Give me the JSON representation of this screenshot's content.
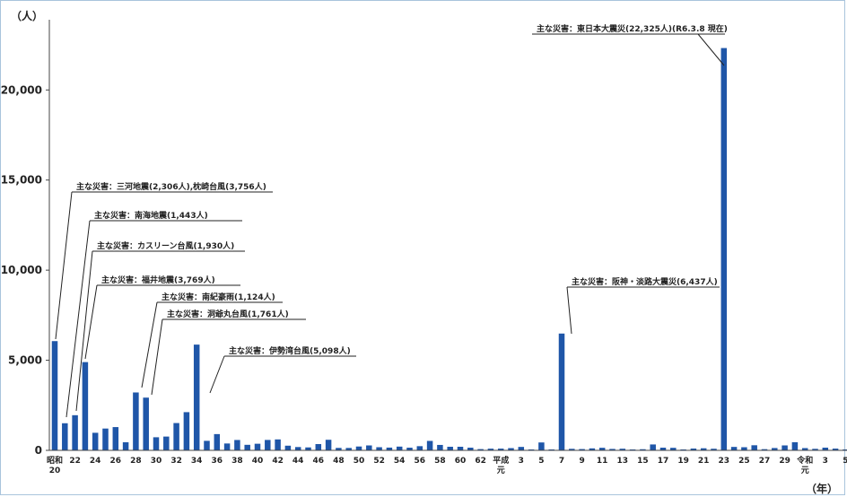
{
  "chart_data": {
    "type": "bar",
    "title": "",
    "y_unit": "（人）",
    "x_unit": "（年）",
    "ylim": [
      0,
      23000
    ],
    "y_ticks": [
      0,
      5000,
      10000,
      15000,
      20000
    ],
    "y_tick_labels": [
      "0",
      "5,000",
      "10,000",
      "15,000",
      "20,000"
    ],
    "bar_color": "#1f56a8",
    "grid": false,
    "x_tick_labels": [
      {
        "index": 0,
        "text": "昭和\n20"
      },
      {
        "index": 2,
        "text": "22"
      },
      {
        "index": 4,
        "text": "24"
      },
      {
        "index": 6,
        "text": "26"
      },
      {
        "index": 8,
        "text": "28"
      },
      {
        "index": 10,
        "text": "30"
      },
      {
        "index": 12,
        "text": "32"
      },
      {
        "index": 14,
        "text": "34"
      },
      {
        "index": 16,
        "text": "36"
      },
      {
        "index": 18,
        "text": "38"
      },
      {
        "index": 20,
        "text": "40"
      },
      {
        "index": 22,
        "text": "42"
      },
      {
        "index": 24,
        "text": "44"
      },
      {
        "index": 26,
        "text": "46"
      },
      {
        "index": 28,
        "text": "48"
      },
      {
        "index": 30,
        "text": "50"
      },
      {
        "index": 32,
        "text": "52"
      },
      {
        "index": 34,
        "text": "54"
      },
      {
        "index": 36,
        "text": "56"
      },
      {
        "index": 38,
        "text": "58"
      },
      {
        "index": 40,
        "text": "60"
      },
      {
        "index": 42,
        "text": "62"
      },
      {
        "index": 44,
        "text": "平成\n元"
      },
      {
        "index": 46,
        "text": "3"
      },
      {
        "index": 48,
        "text": "5"
      },
      {
        "index": 50,
        "text": "7"
      },
      {
        "index": 52,
        "text": "9"
      },
      {
        "index": 54,
        "text": "11"
      },
      {
        "index": 56,
        "text": "13"
      },
      {
        "index": 58,
        "text": "15"
      },
      {
        "index": 60,
        "text": "17"
      },
      {
        "index": 62,
        "text": "19"
      },
      {
        "index": 64,
        "text": "21"
      },
      {
        "index": 66,
        "text": "23"
      },
      {
        "index": 68,
        "text": "25"
      },
      {
        "index": 70,
        "text": "27"
      },
      {
        "index": 72,
        "text": "29"
      },
      {
        "index": 74,
        "text": "令和\n元"
      },
      {
        "index": 76,
        "text": "3"
      },
      {
        "index": 78,
        "text": "5"
      }
    ],
    "categories": [
      "昭和20",
      "21",
      "22",
      "23",
      "24",
      "25",
      "26",
      "27",
      "28",
      "29",
      "30",
      "31",
      "32",
      "33",
      "34",
      "35",
      "36",
      "37",
      "38",
      "39",
      "40",
      "41",
      "42",
      "43",
      "44",
      "45",
      "46",
      "47",
      "48",
      "49",
      "50",
      "51",
      "52",
      "53",
      "54",
      "55",
      "56",
      "57",
      "58",
      "59",
      "60",
      "61",
      "62",
      "63",
      "平成元",
      "2",
      "3",
      "4",
      "5",
      "6",
      "7",
      "8",
      "9",
      "10",
      "11",
      "12",
      "13",
      "14",
      "15",
      "16",
      "17",
      "18",
      "19",
      "20",
      "21",
      "22",
      "23",
      "24",
      "25",
      "26",
      "27",
      "28",
      "29",
      "30",
      "令和元",
      "2",
      "3",
      "4",
      "5"
    ],
    "values": [
      6062,
      1504,
      1950,
      4897,
      975,
      1210,
      1291,
      449,
      3212,
      2926,
      727,
      765,
      1515,
      2120,
      5868,
      528,
      902,
      381,
      575,
      307,
      367,
      578,
      607,
      259,
      183,
      163,
      348,
      587,
      135,
      133,
      213,
      273,
      174,
      153,
      208,
      148,
      232,
      524,
      301,
      199,
      199,
      148,
      69,
      93,
      96,
      123,
      190,
      19,
      438,
      39,
      6482,
      84,
      71,
      109,
      141,
      78,
      90,
      48,
      62,
      327,
      148,
      140,
      24,
      100,
      115,
      89,
      22325,
      190,
      173,
      283,
      65,
      129,
      274,
      452,
      125,
      84,
      150,
      97,
      10
    ],
    "annotations": [
      {
        "text": "主な災害：三河地震(2,306人),枕崎台風(3,756人)",
        "bar_index": 0
      },
      {
        "text": "主な災害：南海地震(1,443人)",
        "bar_index": 1
      },
      {
        "text": "主な災害：カスリーン台風(1,930人)",
        "bar_index": 2
      },
      {
        "text": "主な災害：福井地震(3,769人)",
        "bar_index": 3
      },
      {
        "text": "主な災害：南紀豪雨(1,124人)",
        "bar_index": 8
      },
      {
        "text": "主な災害：洞爺丸台風(1,761人)",
        "bar_index": 9
      },
      {
        "text": "主な災害：伊勢湾台風(5,098人)",
        "bar_index": 14
      },
      {
        "text": "主な災害：阪神・淡路大震災(6,437人)",
        "bar_index": 50
      },
      {
        "text": "主な災害：東日本大震災(22,325人)(R6.3.8 現在)",
        "bar_index": 66
      }
    ]
  }
}
